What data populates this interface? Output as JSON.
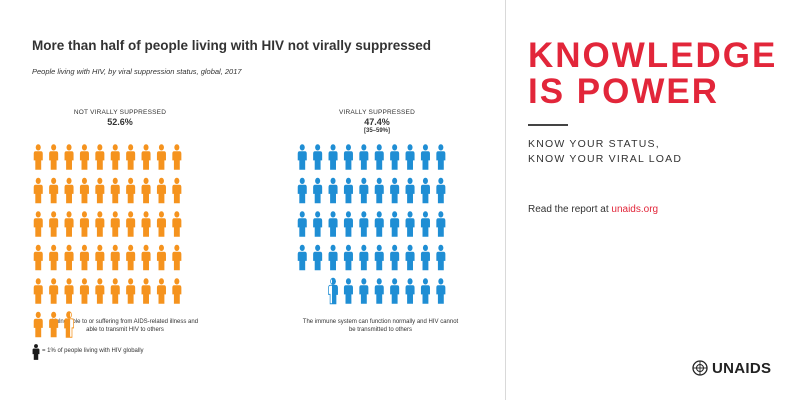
{
  "title": "More than half of people living with HIV not virally suppressed",
  "subtitle": "People living with HIV, by viral suppression status, global, 2017",
  "groups": [
    {
      "label": "NOT VIRALLY SUPPRESSED",
      "percent": "52.6%",
      "range": "",
      "description_line1": "Vulnerable to or suffering from AIDS-related illness and",
      "description_line2": "able to transmit HIV to others"
    },
    {
      "label": "VIRALLY SUPPRESSED",
      "percent": "47.4%",
      "range": "[35–59%]",
      "description_line1": "The immune system can function normally and HIV cannot",
      "description_line2": "be transmitted to others"
    }
  ],
  "legend": {
    "text": "= 1% of people living with HIV globally",
    "icon": "person-icon"
  },
  "right_panel": {
    "headline_line1": "KNOWLEDGE",
    "headline_line2": "IS POWER",
    "sub_line1": "KNOW YOUR STATUS,",
    "sub_line2": "KNOW YOUR VIRAL LOAD",
    "report_text": "Read the report at",
    "report_link": "unaids.org"
  },
  "logo": {
    "text": "UNAIDS",
    "icon": "un-emblem-icon"
  },
  "colors": {
    "orange": "#f5931e",
    "blue": "#1f8ed4",
    "red": "#e2263a"
  },
  "chart_data": {
    "type": "pictogram",
    "unit": "1% of people living with HIV globally",
    "series": [
      {
        "name": "NOT VIRALLY SUPPRESSED",
        "value": 52.6,
        "color": "#f5931e"
      },
      {
        "name": "VIRALLY SUPPRESSED",
        "value": 47.4,
        "range": [
          35,
          59
        ],
        "color": "#1f8ed4"
      }
    ]
  }
}
